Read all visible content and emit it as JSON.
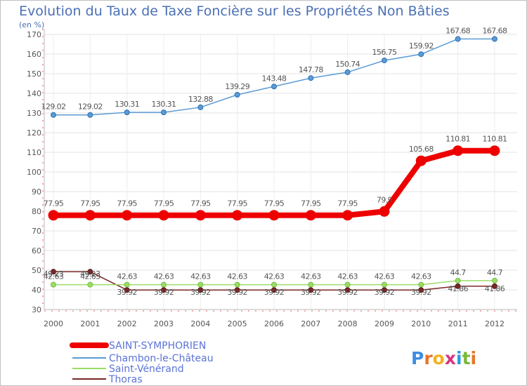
{
  "chart_data": {
    "type": "line",
    "title": "Evolution du Taux de Taxe Foncière sur les Propriétés Non Bâties",
    "unit_label": "(en %)",
    "xlabel": "",
    "ylabel": "",
    "x": [
      "2000",
      "2001",
      "2002",
      "2003",
      "2004",
      "2005",
      "2006",
      "2007",
      "2008",
      "2009",
      "2010",
      "2011",
      "2012"
    ],
    "ylim": [
      30,
      170
    ],
    "yticks": [
      30,
      40,
      50,
      60,
      70,
      80,
      90,
      100,
      110,
      120,
      130,
      140,
      150,
      160,
      170
    ],
    "grid": true,
    "legend_position": "bottom-left",
    "series": [
      {
        "key": "chambon",
        "name": "Chambon-le-Château",
        "color": "#5b9bd5",
        "values": [
          129.02,
          129.02,
          130.31,
          130.31,
          132.88,
          139.29,
          143.48,
          147.78,
          150.74,
          156.75,
          159.92,
          167.68,
          167.68
        ],
        "labels": [
          "129.02",
          "129.02",
          "130.31",
          "130.31",
          "132.88",
          "139.29",
          "143.48",
          "147.78",
          "150.74",
          "156.75",
          "159.92",
          "167.68",
          "167.68"
        ]
      },
      {
        "key": "saint-symphorien",
        "name": "SAINT-SYMPHORIEN",
        "color": "#ee0000",
        "values": [
          77.95,
          77.95,
          77.95,
          77.95,
          77.95,
          77.95,
          77.95,
          77.95,
          77.95,
          79.9,
          105.68,
          110.81,
          110.81
        ],
        "labels": [
          "77.95",
          "77.95",
          "77.95",
          "77.95",
          "77.95",
          "77.95",
          "77.95",
          "77.95",
          "77.95",
          "79.9",
          "105.68",
          "110.81",
          "110.81"
        ]
      },
      {
        "key": "saint-venerand",
        "name": "Saint-Vénérand",
        "color": "#99dd66",
        "values": [
          42.63,
          42.63,
          42.63,
          42.63,
          42.63,
          42.63,
          42.63,
          42.63,
          42.63,
          42.63,
          42.63,
          44.7,
          44.7
        ],
        "labels": [
          "42.63",
          "42.63",
          "42.63",
          "42.63",
          "42.63",
          "42.63",
          "42.63",
          "42.63",
          "42.63",
          "42.63",
          "42.63",
          "44.7",
          "44.7"
        ]
      },
      {
        "key": "thoras",
        "name": "Thoras",
        "color": "#7b2626",
        "values": [
          49.23,
          49.23,
          39.92,
          39.92,
          39.92,
          39.92,
          39.92,
          39.92,
          39.92,
          39.92,
          39.92,
          41.86,
          41.86
        ],
        "labels": [
          "49.23",
          "49.23",
          "39.92",
          "39.92",
          "39.92",
          "39.92",
          "39.92",
          "39.92",
          "39.92",
          "39.92",
          "39.92",
          "41.86",
          "41.86"
        ]
      }
    ],
    "legend": [
      {
        "key": "saint-symphorien",
        "label": "SAINT-SYMPHORIEN"
      },
      {
        "key": "chambon",
        "label": "Chambon-le-Château"
      },
      {
        "key": "saint-venerand",
        "label": "Saint-Vénérand"
      },
      {
        "key": "thoras",
        "label": "Thoras"
      }
    ]
  },
  "logo": {
    "text": "Proxiti"
  }
}
